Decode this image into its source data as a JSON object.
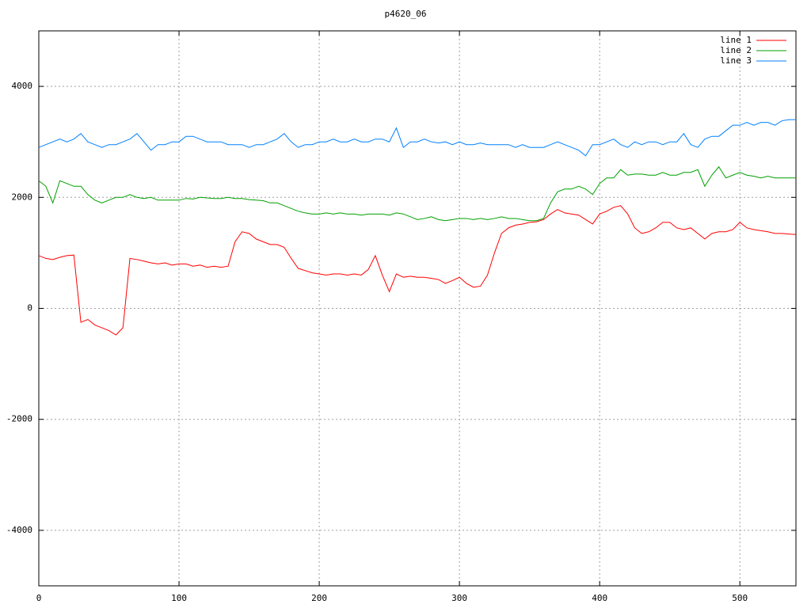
{
  "chart_data": {
    "type": "line",
    "title": "p4620_06",
    "x": [
      0,
      5,
      10,
      15,
      20,
      25,
      30,
      35,
      40,
      45,
      50,
      55,
      60,
      65,
      70,
      75,
      80,
      85,
      90,
      95,
      100,
      105,
      110,
      115,
      120,
      125,
      130,
      135,
      140,
      145,
      150,
      155,
      160,
      165,
      170,
      175,
      180,
      185,
      190,
      195,
      200,
      205,
      210,
      215,
      220,
      225,
      230,
      235,
      240,
      245,
      250,
      255,
      260,
      265,
      270,
      275,
      280,
      285,
      290,
      295,
      300,
      305,
      310,
      315,
      320,
      325,
      330,
      335,
      340,
      345,
      350,
      355,
      360,
      365,
      370,
      375,
      380,
      385,
      390,
      395,
      400,
      405,
      410,
      415,
      420,
      425,
      430,
      435,
      440,
      445,
      450,
      455,
      460,
      465,
      470,
      475,
      480,
      485,
      490,
      495,
      500,
      505,
      510,
      515,
      520,
      525,
      530,
      535,
      540
    ],
    "series": [
      {
        "name": "line 1",
        "color": "#ff0000",
        "values": [
          950,
          900,
          880,
          920,
          950,
          960,
          -250,
          -200,
          -300,
          -350,
          -400,
          -480,
          -350,
          900,
          880,
          850,
          820,
          800,
          820,
          780,
          800,
          800,
          760,
          780,
          740,
          760,
          740,
          760,
          1200,
          1380,
          1350,
          1250,
          1200,
          1150,
          1150,
          1100,
          900,
          720,
          680,
          640,
          620,
          600,
          620,
          620,
          600,
          620,
          600,
          700,
          950,
          600,
          300,
          620,
          560,
          580,
          560,
          560,
          540,
          520,
          450,
          500,
          560,
          450,
          380,
          400,
          600,
          1000,
          1350,
          1450,
          1500,
          1520,
          1550,
          1560,
          1600,
          1700,
          1780,
          1720,
          1700,
          1680,
          1600,
          1520,
          1700,
          1750,
          1820,
          1850,
          1700,
          1450,
          1350,
          1380,
          1450,
          1550,
          1550,
          1450,
          1420,
          1450,
          1350,
          1250,
          1350,
          1380,
          1380,
          1420,
          1550,
          1450,
          1420,
          1400,
          1380,
          1350,
          1350,
          1340,
          1330
        ]
      },
      {
        "name": "line 2",
        "color": "#00a000",
        "values": [
          2300,
          2200,
          1900,
          2300,
          2250,
          2200,
          2200,
          2050,
          1950,
          1900,
          1950,
          2000,
          2000,
          2050,
          2000,
          1980,
          2000,
          1950,
          1950,
          1950,
          1950,
          1980,
          1970,
          2000,
          1990,
          1980,
          1980,
          2000,
          1980,
          1980,
          1960,
          1950,
          1940,
          1900,
          1900,
          1850,
          1800,
          1750,
          1720,
          1700,
          1700,
          1720,
          1700,
          1720,
          1700,
          1700,
          1680,
          1700,
          1700,
          1700,
          1680,
          1720,
          1700,
          1650,
          1600,
          1620,
          1650,
          1600,
          1580,
          1600,
          1620,
          1620,
          1600,
          1620,
          1600,
          1620,
          1650,
          1620,
          1620,
          1600,
          1580,
          1580,
          1620,
          1900,
          2100,
          2150,
          2150,
          2200,
          2150,
          2050,
          2250,
          2350,
          2350,
          2500,
          2400,
          2420,
          2420,
          2400,
          2400,
          2450,
          2400,
          2400,
          2450,
          2450,
          2500,
          2200,
          2400,
          2550,
          2350,
          2400,
          2450,
          2400,
          2380,
          2350,
          2380,
          2350,
          2350,
          2350,
          2350
        ]
      },
      {
        "name": "line 3",
        "color": "#0080ff",
        "values": [
          2900,
          2950,
          3000,
          3050,
          3000,
          3050,
          3150,
          3000,
          2950,
          2900,
          2950,
          2950,
          3000,
          3050,
          3150,
          3000,
          2850,
          2950,
          2950,
          3000,
          3000,
          3100,
          3100,
          3050,
          3000,
          3000,
          3000,
          2950,
          2950,
          2950,
          2900,
          2950,
          2950,
          3000,
          3050,
          3150,
          3000,
          2900,
          2950,
          2950,
          3000,
          3000,
          3050,
          3000,
          3000,
          3050,
          3000,
          3000,
          3050,
          3050,
          3000,
          3250,
          2900,
          3000,
          3000,
          3050,
          3000,
          2980,
          3000,
          2950,
          3000,
          2950,
          2950,
          2980,
          2950,
          2950,
          2950,
          2950,
          2900,
          2950,
          2900,
          2900,
          2900,
          2950,
          3000,
          2950,
          2900,
          2850,
          2750,
          2950,
          2950,
          3000,
          3050,
          2950,
          2900,
          3000,
          2950,
          3000,
          3000,
          2950,
          3000,
          3000,
          3150,
          2950,
          2900,
          3050,
          3100,
          3100,
          3200,
          3300,
          3300,
          3350,
          3300,
          3350,
          3350,
          3300,
          3380,
          3400,
          3400
        ]
      }
    ],
    "xlim": [
      0,
      540
    ],
    "xticks": [
      0,
      100,
      200,
      300,
      400,
      500
    ],
    "ylim": [
      -5000,
      5000
    ],
    "yticks": [
      -4000,
      -2000,
      0,
      2000,
      4000
    ],
    "grid": true,
    "legend": "top-right"
  }
}
